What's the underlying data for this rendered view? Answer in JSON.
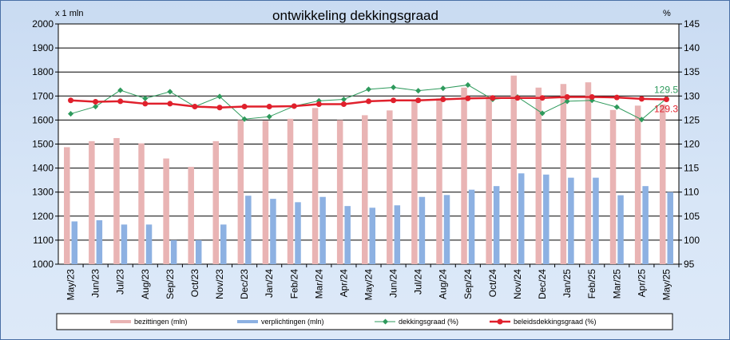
{
  "chart_data": {
    "type": "bar+line",
    "title": "ontwikkeling  dekkingsgraad",
    "left_unit": "x 1 mln",
    "right_unit": "%",
    "ylim_left": [
      1000,
      2000
    ],
    "ylim_right": [
      95,
      145
    ],
    "left_ticks": [
      1000,
      1100,
      1200,
      1300,
      1400,
      1500,
      1600,
      1700,
      1800,
      1900,
      2000
    ],
    "right_ticks": [
      95,
      100,
      105,
      110,
      115,
      120,
      125,
      130,
      135,
      140,
      145
    ],
    "categories": [
      "May/23",
      "Jun/23",
      "Jul/23",
      "Aug/23",
      "Sep/23",
      "Oct/23",
      "Nov/23",
      "Dec/23",
      "Jan/24",
      "Feb/24",
      "Mar/24",
      "Apr/24",
      "May/24",
      "Jun/24",
      "Jul/24",
      "Aug/24",
      "Sep/24",
      "Oct/24",
      "Nov/24",
      "Dec/24",
      "Jan/25",
      "Feb/25",
      "Mar/25",
      "Apr/25",
      "May/25"
    ],
    "grid": true,
    "legend_position": "bottom",
    "series": [
      {
        "name": "bezittingen (mln)",
        "type": "bar",
        "axis": "left",
        "color": "#e9b4b4",
        "values": [
          1487,
          1512,
          1525,
          1503,
          1440,
          1405,
          1512,
          1600,
          1597,
          1605,
          1650,
          1600,
          1620,
          1640,
          1680,
          1690,
          1735,
          1700,
          1785,
          1735,
          1750,
          1757,
          1642,
          1660,
          1665
        ]
      },
      {
        "name": "verplichtingen (mln)",
        "type": "bar",
        "axis": "left",
        "color": "#8db1e2",
        "values": [
          1178,
          1183,
          1165,
          1165,
          1100,
          1100,
          1165,
          1285,
          1272,
          1258,
          1280,
          1242,
          1235,
          1245,
          1280,
          1288,
          1310,
          1325,
          1378,
          1373,
          1360,
          1360,
          1287,
          1325,
          1300
        ]
      },
      {
        "name": "dekkingsgraad (%)",
        "type": "line",
        "axis": "right",
        "color": "#2e9a5c",
        "values": [
          126.3,
          127.8,
          131.2,
          129.5,
          130.9,
          127.8,
          129.9,
          125.2,
          125.7,
          127.9,
          129.0,
          129.3,
          131.4,
          131.8,
          131.1,
          131.6,
          132.3,
          129.3,
          129.8,
          126.4,
          128.9,
          129.1,
          127.7,
          125.1,
          129.5
        ]
      },
      {
        "name": "beleidsdekkingsgraad (%)",
        "type": "line",
        "axis": "right",
        "color": "#e0202c",
        "values": [
          129.1,
          128.8,
          128.9,
          128.4,
          128.4,
          127.8,
          127.6,
          127.8,
          127.8,
          127.9,
          128.3,
          128.3,
          128.9,
          129.1,
          129.1,
          129.3,
          129.5,
          129.6,
          129.6,
          129.6,
          129.8,
          129.8,
          129.7,
          129.4,
          129.3
        ]
      }
    ],
    "annotations": [
      {
        "text": "129.5",
        "series": "dekkingsgraad (%)",
        "index": 24,
        "color": "#2e9a5c"
      },
      {
        "text": "129.3",
        "series": "beleidsdekkingsgraad (%)",
        "index": 24,
        "color": "#e0202c"
      }
    ]
  }
}
